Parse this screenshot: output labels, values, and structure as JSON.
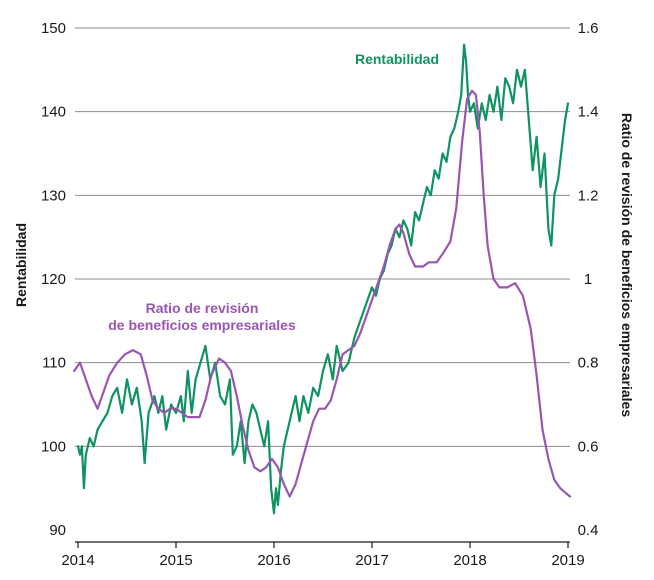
{
  "chart_data": {
    "type": "line",
    "left_axis": {
      "label": "Rentabilidad",
      "range": [
        90,
        150
      ],
      "ticks": [
        "90",
        "100",
        "110",
        "120",
        "130",
        "140",
        "150"
      ]
    },
    "right_axis": {
      "label": "Ratio de revisión de beneficios empresariales",
      "range": [
        0.4,
        1.6
      ],
      "ticks": [
        "0.4",
        "0.6",
        "0.8",
        "1",
        "1.2",
        "1.4",
        "1.6"
      ]
    },
    "x_axis": {
      "ticks": [
        "2014",
        "2015",
        "2016",
        "2017",
        "2018",
        "2019"
      ],
      "range": [
        2014,
        2019
      ]
    },
    "grid": true,
    "series": [
      {
        "name": "Rentabilidad",
        "axis": "left",
        "color": "#0e9361",
        "points": [
          [
            2014.0,
            100
          ],
          [
            2014.02,
            99
          ],
          [
            2014.04,
            100
          ],
          [
            2014.06,
            95
          ],
          [
            2014.08,
            99
          ],
          [
            2014.12,
            101
          ],
          [
            2014.16,
            100
          ],
          [
            2014.2,
            102
          ],
          [
            2014.25,
            103
          ],
          [
            2014.3,
            104
          ],
          [
            2014.35,
            106
          ],
          [
            2014.4,
            107
          ],
          [
            2014.45,
            104
          ],
          [
            2014.5,
            108
          ],
          [
            2014.55,
            105
          ],
          [
            2014.6,
            107
          ],
          [
            2014.65,
            103
          ],
          [
            2014.68,
            98
          ],
          [
            2014.72,
            104
          ],
          [
            2014.78,
            106
          ],
          [
            2014.82,
            104
          ],
          [
            2014.86,
            106
          ],
          [
            2014.9,
            102
          ],
          [
            2014.95,
            105
          ],
          [
            2015.0,
            104
          ],
          [
            2015.05,
            106
          ],
          [
            2015.08,
            103
          ],
          [
            2015.12,
            109
          ],
          [
            2015.16,
            104
          ],
          [
            2015.2,
            108
          ],
          [
            2015.25,
            110
          ],
          [
            2015.3,
            112
          ],
          [
            2015.35,
            108
          ],
          [
            2015.4,
            110
          ],
          [
            2015.45,
            106
          ],
          [
            2015.5,
            105
          ],
          [
            2015.55,
            108
          ],
          [
            2015.58,
            99
          ],
          [
            2015.62,
            100
          ],
          [
            2015.66,
            103
          ],
          [
            2015.7,
            98
          ],
          [
            2015.74,
            103
          ],
          [
            2015.78,
            105
          ],
          [
            2015.82,
            104
          ],
          [
            2015.86,
            102
          ],
          [
            2015.9,
            100
          ],
          [
            2015.94,
            103
          ],
          [
            2015.97,
            95
          ],
          [
            2016.0,
            92
          ],
          [
            2016.02,
            95
          ],
          [
            2016.04,
            93
          ],
          [
            2016.07,
            97
          ],
          [
            2016.1,
            100
          ],
          [
            2016.14,
            102
          ],
          [
            2016.18,
            104
          ],
          [
            2016.22,
            106
          ],
          [
            2016.26,
            103
          ],
          [
            2016.3,
            106
          ],
          [
            2016.35,
            104
          ],
          [
            2016.4,
            107
          ],
          [
            2016.45,
            106
          ],
          [
            2016.5,
            109
          ],
          [
            2016.55,
            111
          ],
          [
            2016.6,
            108
          ],
          [
            2016.64,
            112
          ],
          [
            2016.7,
            109
          ],
          [
            2016.76,
            110
          ],
          [
            2016.82,
            113
          ],
          [
            2016.88,
            115
          ],
          [
            2016.94,
            117
          ],
          [
            2017.0,
            119
          ],
          [
            2017.04,
            118
          ],
          [
            2017.08,
            120
          ],
          [
            2017.12,
            121
          ],
          [
            2017.16,
            123
          ],
          [
            2017.2,
            124
          ],
          [
            2017.24,
            126
          ],
          [
            2017.28,
            125
          ],
          [
            2017.32,
            127
          ],
          [
            2017.36,
            126
          ],
          [
            2017.4,
            124
          ],
          [
            2017.44,
            128
          ],
          [
            2017.48,
            127
          ],
          [
            2017.52,
            129
          ],
          [
            2017.56,
            131
          ],
          [
            2017.6,
            130
          ],
          [
            2017.64,
            133
          ],
          [
            2017.68,
            132
          ],
          [
            2017.72,
            135
          ],
          [
            2017.76,
            134
          ],
          [
            2017.8,
            137
          ],
          [
            2017.84,
            138
          ],
          [
            2017.88,
            140
          ],
          [
            2017.91,
            142
          ],
          [
            2017.94,
            148
          ],
          [
            2017.96,
            146
          ],
          [
            2017.98,
            142
          ],
          [
            2018.0,
            140
          ],
          [
            2018.04,
            141
          ],
          [
            2018.08,
            138
          ],
          [
            2018.12,
            141
          ],
          [
            2018.16,
            139
          ],
          [
            2018.2,
            142
          ],
          [
            2018.24,
            140
          ],
          [
            2018.28,
            143
          ],
          [
            2018.32,
            139
          ],
          [
            2018.36,
            144
          ],
          [
            2018.4,
            143
          ],
          [
            2018.44,
            141
          ],
          [
            2018.48,
            145
          ],
          [
            2018.52,
            143
          ],
          [
            2018.56,
            145
          ],
          [
            2018.6,
            139
          ],
          [
            2018.64,
            133
          ],
          [
            2018.68,
            137
          ],
          [
            2018.72,
            131
          ],
          [
            2018.76,
            135
          ],
          [
            2018.8,
            126
          ],
          [
            2018.83,
            124
          ],
          [
            2018.86,
            130
          ],
          [
            2018.9,
            132
          ],
          [
            2018.94,
            136
          ],
          [
            2018.97,
            139
          ],
          [
            2019.0,
            141
          ]
        ]
      },
      {
        "name": "Ratio de revisión\nde beneficios empresariales",
        "axis": "right",
        "color": "#9955b2",
        "points": [
          [
            2013.96,
            0.78
          ],
          [
            2014.02,
            0.8
          ],
          [
            2014.08,
            0.76
          ],
          [
            2014.14,
            0.72
          ],
          [
            2014.2,
            0.69
          ],
          [
            2014.26,
            0.73
          ],
          [
            2014.32,
            0.77
          ],
          [
            2014.4,
            0.8
          ],
          [
            2014.48,
            0.82
          ],
          [
            2014.56,
            0.83
          ],
          [
            2014.64,
            0.82
          ],
          [
            2014.7,
            0.77
          ],
          [
            2014.76,
            0.71
          ],
          [
            2014.82,
            0.69
          ],
          [
            2014.88,
            0.68
          ],
          [
            2014.94,
            0.69
          ],
          [
            2015.0,
            0.69
          ],
          [
            2015.06,
            0.68
          ],
          [
            2015.12,
            0.67
          ],
          [
            2015.18,
            0.67
          ],
          [
            2015.24,
            0.67
          ],
          [
            2015.3,
            0.71
          ],
          [
            2015.36,
            0.77
          ],
          [
            2015.44,
            0.81
          ],
          [
            2015.5,
            0.8
          ],
          [
            2015.56,
            0.78
          ],
          [
            2015.62,
            0.72
          ],
          [
            2015.68,
            0.65
          ],
          [
            2015.74,
            0.59
          ],
          [
            2015.8,
            0.55
          ],
          [
            2015.86,
            0.54
          ],
          [
            2015.92,
            0.55
          ],
          [
            2015.98,
            0.57
          ],
          [
            2016.04,
            0.55
          ],
          [
            2016.1,
            0.51
          ],
          [
            2016.16,
            0.48
          ],
          [
            2016.22,
            0.51
          ],
          [
            2016.28,
            0.56
          ],
          [
            2016.34,
            0.61
          ],
          [
            2016.4,
            0.66
          ],
          [
            2016.46,
            0.69
          ],
          [
            2016.52,
            0.69
          ],
          [
            2016.58,
            0.71
          ],
          [
            2016.64,
            0.76
          ],
          [
            2016.7,
            0.82
          ],
          [
            2016.76,
            0.83
          ],
          [
            2016.82,
            0.84
          ],
          [
            2016.88,
            0.87
          ],
          [
            2016.94,
            0.91
          ],
          [
            2017.0,
            0.95
          ],
          [
            2017.06,
            0.99
          ],
          [
            2017.12,
            1.03
          ],
          [
            2017.18,
            1.08
          ],
          [
            2017.24,
            1.12
          ],
          [
            2017.28,
            1.13
          ],
          [
            2017.32,
            1.11
          ],
          [
            2017.38,
            1.06
          ],
          [
            2017.44,
            1.03
          ],
          [
            2017.52,
            1.03
          ],
          [
            2017.58,
            1.04
          ],
          [
            2017.66,
            1.04
          ],
          [
            2017.72,
            1.06
          ],
          [
            2017.8,
            1.09
          ],
          [
            2017.86,
            1.17
          ],
          [
            2017.92,
            1.33
          ],
          [
            2017.97,
            1.43
          ],
          [
            2018.02,
            1.45
          ],
          [
            2018.06,
            1.44
          ],
          [
            2018.1,
            1.35
          ],
          [
            2018.14,
            1.2
          ],
          [
            2018.18,
            1.08
          ],
          [
            2018.24,
            1.0
          ],
          [
            2018.3,
            0.98
          ],
          [
            2018.38,
            0.98
          ],
          [
            2018.46,
            0.99
          ],
          [
            2018.54,
            0.96
          ],
          [
            2018.62,
            0.88
          ],
          [
            2018.68,
            0.77
          ],
          [
            2018.74,
            0.64
          ],
          [
            2018.8,
            0.57
          ],
          [
            2018.86,
            0.52
          ],
          [
            2018.92,
            0.5
          ],
          [
            2018.97,
            0.49
          ],
          [
            2019.02,
            0.48
          ]
        ]
      }
    ]
  }
}
